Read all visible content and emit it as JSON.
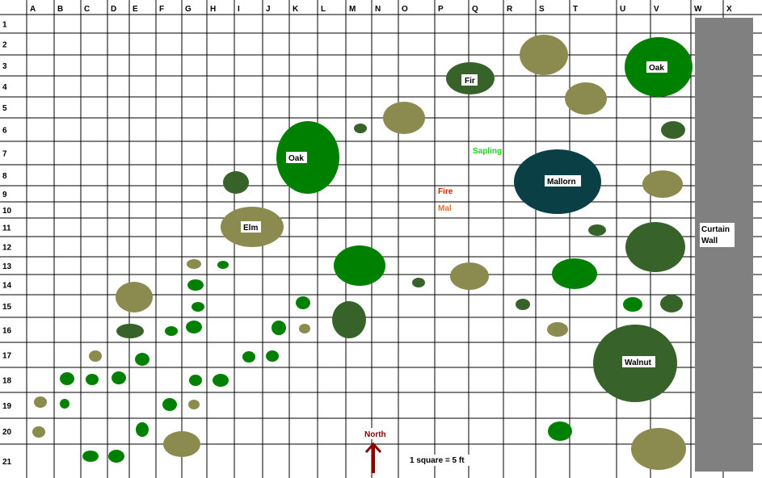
{
  "grid": {
    "columns": [
      "A",
      "B",
      "C",
      "D",
      "E",
      "F",
      "G",
      "H",
      "I",
      "J",
      "K",
      "L",
      "M",
      "N",
      "O",
      "P",
      "Q",
      "R",
      "S",
      "T",
      "U",
      "V",
      "W",
      "X"
    ],
    "rows": [
      "1",
      "2",
      "3",
      "4",
      "5",
      "6",
      "7",
      "8",
      "9",
      "10",
      "11",
      "12",
      "13",
      "14",
      "15",
      "16",
      "17",
      "18",
      "19",
      "20",
      "21"
    ]
  },
  "colors": {
    "gridline": "#000000",
    "light_green": "#008000",
    "dark_green": "#37632a",
    "olive": "#8b8b4f",
    "teal": "#0a3f46",
    "wall": "#808080",
    "fire_text": "#cc2200",
    "mal_text": "#e07030",
    "sapling_text": "#22cc22",
    "north_text": "#8b0000"
  },
  "labels": {
    "oak_1": "Oak",
    "oak_2": "Oak",
    "fir": "Fir",
    "elm": "Elm",
    "mallorn": "Mallorn",
    "walnut": "Walnut",
    "curtain_wall_line1": "Curtain",
    "curtain_wall_line2": "Wall"
  },
  "annotations": {
    "sapling": "Sapling",
    "fire": "Fire",
    "mal": "Mal",
    "north": "North",
    "scale": "1 square = 5 ft"
  },
  "trees": [
    {
      "kind": "olive",
      "size": "large"
    },
    {
      "kind": "light_green",
      "size": "large",
      "label": "oak_1"
    },
    {
      "kind": "dark_green",
      "size": "medium",
      "label": "fir"
    },
    {
      "kind": "olive",
      "size": "medium"
    },
    {
      "kind": "olive",
      "size": "medium"
    },
    {
      "kind": "dark_green",
      "size": "small"
    },
    {
      "kind": "dark_green",
      "size": "small"
    },
    {
      "kind": "light_green",
      "size": "large",
      "label": "oak_2"
    },
    {
      "kind": "teal",
      "size": "large",
      "label": "mallorn"
    },
    {
      "kind": "dark_green",
      "size": "small"
    },
    {
      "kind": "olive",
      "size": "medium"
    },
    {
      "kind": "olive",
      "size": "large",
      "label": "elm"
    },
    {
      "kind": "dark_green",
      "size": "small"
    },
    {
      "kind": "dark_green",
      "size": "large"
    },
    {
      "kind": "light_green",
      "size": "large"
    },
    {
      "kind": "olive",
      "size": "medium"
    },
    {
      "kind": "light_green",
      "size": "medium"
    },
    {
      "kind": "olive",
      "size": "small"
    },
    {
      "kind": "light_green",
      "size": "small"
    },
    {
      "kind": "dark_green",
      "size": "small"
    },
    {
      "kind": "olive",
      "size": "medium"
    },
    {
      "kind": "light_green",
      "size": "small"
    },
    {
      "kind": "light_green",
      "size": "small"
    },
    {
      "kind": "dark_green",
      "size": "small"
    },
    {
      "kind": "light_green",
      "size": "small"
    },
    {
      "kind": "dark_green",
      "size": "small"
    },
    {
      "kind": "dark_green",
      "size": "medium"
    },
    {
      "kind": "olive",
      "size": "small"
    },
    {
      "kind": "light_green",
      "size": "small"
    },
    {
      "kind": "dark_green",
      "size": "medium"
    },
    {
      "kind": "light_green",
      "size": "small"
    },
    {
      "kind": "light_green",
      "size": "small"
    },
    {
      "kind": "olive",
      "size": "small"
    },
    {
      "kind": "dark_green",
      "size": "medium"
    },
    {
      "kind": "olive",
      "size": "small"
    },
    {
      "kind": "light_green",
      "size": "small"
    },
    {
      "kind": "light_green",
      "size": "small"
    },
    {
      "kind": "light_green",
      "size": "small"
    },
    {
      "kind": "dark_green",
      "size": "large",
      "label": "walnut"
    },
    {
      "kind": "light_green",
      "size": "small"
    },
    {
      "kind": "light_green",
      "size": "small"
    },
    {
      "kind": "light_green",
      "size": "small"
    },
    {
      "kind": "light_green",
      "size": "small"
    },
    {
      "kind": "light_green",
      "size": "small"
    },
    {
      "kind": "olive",
      "size": "small"
    },
    {
      "kind": "light_green",
      "size": "small"
    },
    {
      "kind": "olive",
      "size": "small"
    },
    {
      "kind": "light_green",
      "size": "small"
    },
    {
      "kind": "olive",
      "size": "small"
    },
    {
      "kind": "light_green",
      "size": "small"
    },
    {
      "kind": "light_green",
      "size": "small"
    },
    {
      "kind": "light_green",
      "size": "small"
    },
    {
      "kind": "light_green",
      "size": "small"
    },
    {
      "kind": "olive",
      "size": "medium"
    },
    {
      "kind": "light_green",
      "size": "small"
    },
    {
      "kind": "light_green",
      "size": "small"
    },
    {
      "kind": "olive",
      "size": "large"
    },
    {
      "kind": "light_green",
      "size": "small"
    },
    {
      "kind": "light_green",
      "size": "small"
    }
  ]
}
